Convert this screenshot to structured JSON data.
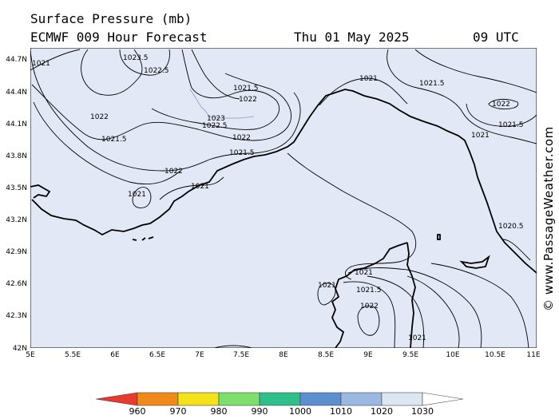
{
  "header": {
    "title": "Surface Pressure (mb)",
    "model": "ECMWF 009 Hour Forecast",
    "date": "Thu 01 May 2025",
    "time": "09 UTC"
  },
  "watermark": "© www.PassageWeather.com",
  "colors": {
    "sea": "#e2e8f6",
    "contour": "#000000",
    "coast": "#000000"
  },
  "axes": {
    "lat_labels": [
      "44.7N",
      "44.4N",
      "44.1N",
      "43.8N",
      "43.5N",
      "43.2N",
      "42.9N",
      "42.6N",
      "42.3N",
      "42N"
    ],
    "lon_labels": [
      "5E",
      "5.5E",
      "6E",
      "6.5E",
      "7E",
      "7.5E",
      "8E",
      "8.5E",
      "9E",
      "9.5E",
      "10E",
      "10.5E",
      "11E"
    ]
  },
  "contour_labels": [
    "1021",
    "1023.5",
    "1022.5",
    "1021.5",
    "1022",
    "1023",
    "1022.5",
    "1022",
    "1021.5",
    "1022",
    "1021",
    "1021",
    "1021.5",
    "1022",
    "1021.5",
    "1021",
    "1020.5",
    "1021",
    "1021",
    "1021.5",
    "1022",
    "1021",
    "1021"
  ],
  "colorbar": {
    "labels": [
      "960",
      "970",
      "980",
      "990",
      "1000",
      "1010",
      "1020",
      "1030"
    ],
    "colors": [
      "#e83a2e",
      "#f08a1a",
      "#f4e21c",
      "#7ee06a",
      "#2fbf8a",
      "#5b8fd0",
      "#9ab8e0",
      "#dfe6f3"
    ]
  }
}
